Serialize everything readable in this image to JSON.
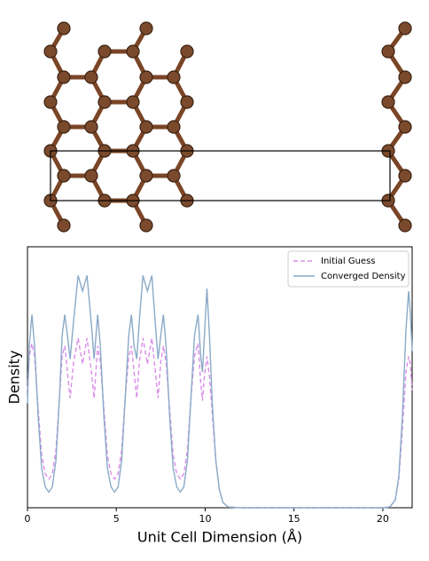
{
  "chart_data": {
    "type": "line",
    "xlabel": "Unit Cell Dimension (Å)",
    "ylabel": "Density",
    "x": [
      0,
      0.1,
      0.25,
      0.4,
      0.6,
      0.8,
      1.0,
      1.2,
      1.4,
      1.6,
      1.8,
      1.95,
      2.1,
      2.25,
      2.4,
      2.6,
      2.85,
      3.1,
      3.35,
      3.6,
      3.75,
      3.95,
      4.1,
      4.3,
      4.5,
      4.7,
      4.9,
      5.1,
      5.3,
      5.5,
      5.7,
      5.85,
      6.0,
      6.15,
      6.3,
      6.5,
      6.75,
      7.0,
      7.2,
      7.35,
      7.5,
      7.65,
      7.8,
      8.0,
      8.2,
      8.4,
      8.6,
      8.8,
      9.0,
      9.2,
      9.4,
      9.6,
      9.75,
      9.85,
      9.95,
      10.1,
      10.25,
      10.4,
      10.6,
      10.8,
      11.0,
      11.3,
      12,
      14,
      16,
      18,
      20,
      20.4,
      20.7,
      20.9,
      21.1,
      21.3,
      21.45,
      21.55,
      21.65
    ],
    "series": [
      {
        "name": "Initial Guess",
        "color": "#d98ee8",
        "linestyle": "dashed",
        "values": [
          0.45,
          0.58,
          0.63,
          0.58,
          0.38,
          0.2,
          0.13,
          0.11,
          0.13,
          0.22,
          0.42,
          0.58,
          0.62,
          0.52,
          0.42,
          0.56,
          0.65,
          0.55,
          0.65,
          0.52,
          0.42,
          0.62,
          0.56,
          0.38,
          0.2,
          0.13,
          0.11,
          0.13,
          0.22,
          0.42,
          0.58,
          0.62,
          0.52,
          0.42,
          0.56,
          0.65,
          0.55,
          0.65,
          0.52,
          0.42,
          0.56,
          0.62,
          0.56,
          0.38,
          0.2,
          0.13,
          0.11,
          0.13,
          0.22,
          0.42,
          0.58,
          0.63,
          0.48,
          0.41,
          0.5,
          0.58,
          0.5,
          0.36,
          0.18,
          0.07,
          0.02,
          0.003,
          0,
          0,
          0,
          0,
          0,
          0.003,
          0.03,
          0.11,
          0.3,
          0.52,
          0.58,
          0.55,
          0.45
        ]
      },
      {
        "name": "Converged Density",
        "color": "#8aaac8",
        "linestyle": "solid",
        "values": [
          0.4,
          0.62,
          0.74,
          0.62,
          0.35,
          0.15,
          0.08,
          0.06,
          0.08,
          0.18,
          0.42,
          0.66,
          0.74,
          0.66,
          0.57,
          0.72,
          0.89,
          0.83,
          0.89,
          0.7,
          0.57,
          0.74,
          0.62,
          0.35,
          0.15,
          0.08,
          0.06,
          0.08,
          0.18,
          0.42,
          0.66,
          0.74,
          0.62,
          0.57,
          0.72,
          0.89,
          0.83,
          0.89,
          0.7,
          0.57,
          0.66,
          0.74,
          0.62,
          0.35,
          0.15,
          0.08,
          0.06,
          0.08,
          0.18,
          0.42,
          0.66,
          0.74,
          0.58,
          0.52,
          0.65,
          0.84,
          0.65,
          0.4,
          0.18,
          0.07,
          0.02,
          0.003,
          0,
          0,
          0,
          0,
          0,
          0.003,
          0.03,
          0.12,
          0.35,
          0.68,
          0.83,
          0.75,
          0.6
        ]
      }
    ],
    "xlim": [
      0,
      21.65
    ],
    "ylim": [
      0,
      1
    ],
    "xticks": [
      0,
      5,
      10,
      15,
      20
    ],
    "legend": "upper right"
  }
}
